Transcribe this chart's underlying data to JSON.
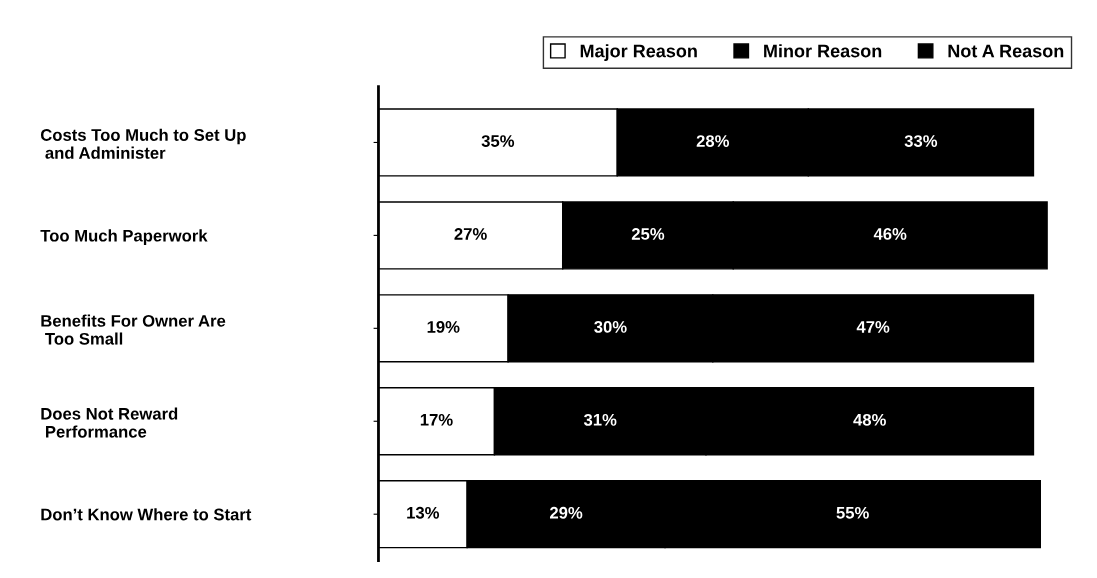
{
  "chart_data": {
    "type": "bar",
    "orientation": "horizontal",
    "stacked": true,
    "categories": [
      "Costs Too Much to Set Up\n and Administer",
      "Too Much Paperwork",
      "Benefits For Owner Are\n Too Small",
      "Does Not Reward\n Performance",
      "Don’t Know Where to Start"
    ],
    "series": [
      {
        "name": "Major Reason",
        "color": "#ffffff",
        "values": [
          35,
          27,
          19,
          17,
          13
        ],
        "value_labels": [
          "35%",
          "27%",
          "19%",
          "17%",
          "13%"
        ]
      },
      {
        "name": "Minor Reason",
        "color": "#000000",
        "values": [
          28,
          25,
          30,
          31,
          29
        ],
        "value_labels": [
          "28%",
          "25%",
          "30%",
          "31%",
          "29%"
        ]
      },
      {
        "name": "Not A Reason",
        "color": "#000000",
        "values": [
          33,
          46,
          47,
          48,
          55
        ],
        "value_labels": [
          "33%",
          "46%",
          "47%",
          "48%",
          "55%"
        ]
      }
    ],
    "tick_labels": "y",
    "legend": "top right",
    "grid": false
  }
}
